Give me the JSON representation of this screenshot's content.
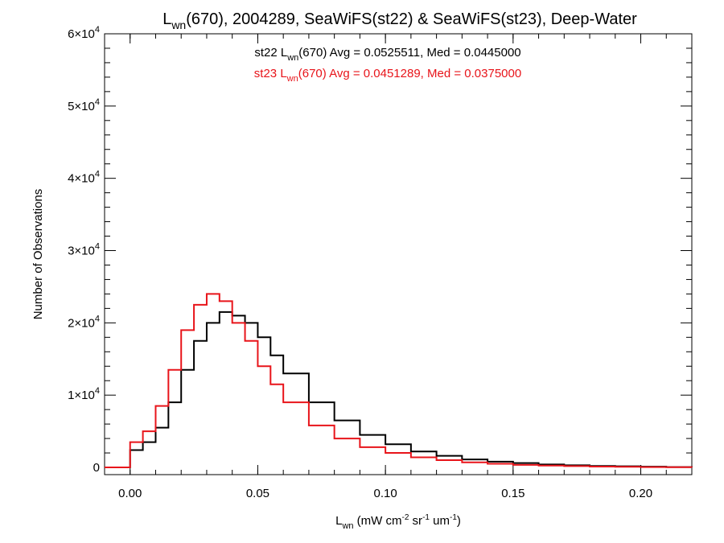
{
  "chart_data": {
    "type": "line",
    "step": true,
    "title": {
      "base": "L",
      "sub": "wn",
      "rest": "(670), 2004289, SeaWiFS(st22) & SeaWiFS(st23), Deep-Water"
    },
    "xlabel": {
      "base": "L",
      "sub": "wn",
      "p1": " (mW cm",
      "sup1": "-2",
      "p2": " sr",
      "sup2": "-1",
      "p3": " um",
      "sup3": "-1",
      "p4": ")"
    },
    "ylabel": "Number of Observations",
    "xlim": [
      -0.01,
      0.22
    ],
    "ylim": [
      -1000,
      60000
    ],
    "x_ticks": [
      0.0,
      0.05,
      0.1,
      0.15,
      0.2
    ],
    "x_tick_labels": [
      "0.00",
      "0.05",
      "0.10",
      "0.15",
      "0.20"
    ],
    "y_ticks": [
      {
        "value": 0,
        "mant": "0",
        "exp": ""
      },
      {
        "value": 10000,
        "mant": "1×10",
        "exp": "4"
      },
      {
        "value": 20000,
        "mant": "2×10",
        "exp": "4"
      },
      {
        "value": 30000,
        "mant": "3×10",
        "exp": "4"
      },
      {
        "value": 40000,
        "mant": "4×10",
        "exp": "4"
      },
      {
        "value": 50000,
        "mant": "5×10",
        "exp": "4"
      },
      {
        "value": 60000,
        "mant": "6×10",
        "exp": "4"
      }
    ],
    "annotations": [
      {
        "color": "#000000",
        "pre": "st22 L",
        "sub": "wn",
        "post": "(670) Avg = 0.0525511, Med = 0.0445000"
      },
      {
        "color": "#e8141a",
        "pre": "st23 L",
        "sub": "wn",
        "post": "(670) Avg = 0.0451289, Med = 0.0375000"
      }
    ],
    "series": [
      {
        "color": "#000000",
        "x": [
          -0.01,
          0.0,
          0.005,
          0.01,
          0.015,
          0.02,
          0.025,
          0.03,
          0.035,
          0.04,
          0.045,
          0.05,
          0.055,
          0.06,
          0.07,
          0.08,
          0.09,
          0.1,
          0.11,
          0.12,
          0.13,
          0.14,
          0.15,
          0.16,
          0.17,
          0.18,
          0.19,
          0.2,
          0.21,
          0.22
        ],
        "y": [
          0,
          2400,
          3500,
          5500,
          9000,
          13500,
          17500,
          20000,
          21500,
          21000,
          20000,
          18000,
          15500,
          13000,
          9000,
          6500,
          4500,
          3200,
          2200,
          1600,
          1100,
          800,
          600,
          400,
          300,
          200,
          150,
          100,
          50,
          0
        ]
      },
      {
        "color": "#e8141a",
        "x": [
          -0.01,
          0.0,
          0.005,
          0.01,
          0.015,
          0.02,
          0.025,
          0.03,
          0.035,
          0.04,
          0.045,
          0.05,
          0.055,
          0.06,
          0.07,
          0.08,
          0.09,
          0.1,
          0.11,
          0.12,
          0.13,
          0.14,
          0.15,
          0.16,
          0.17,
          0.18,
          0.19,
          0.2,
          0.21,
          0.22
        ],
        "y": [
          0,
          3500,
          5000,
          8500,
          13500,
          19000,
          22500,
          24000,
          23000,
          20000,
          17500,
          14000,
          11500,
          9000,
          5800,
          4000,
          2800,
          2000,
          1400,
          1000,
          700,
          500,
          350,
          250,
          180,
          120,
          80,
          50,
          30,
          0
        ]
      }
    ]
  }
}
